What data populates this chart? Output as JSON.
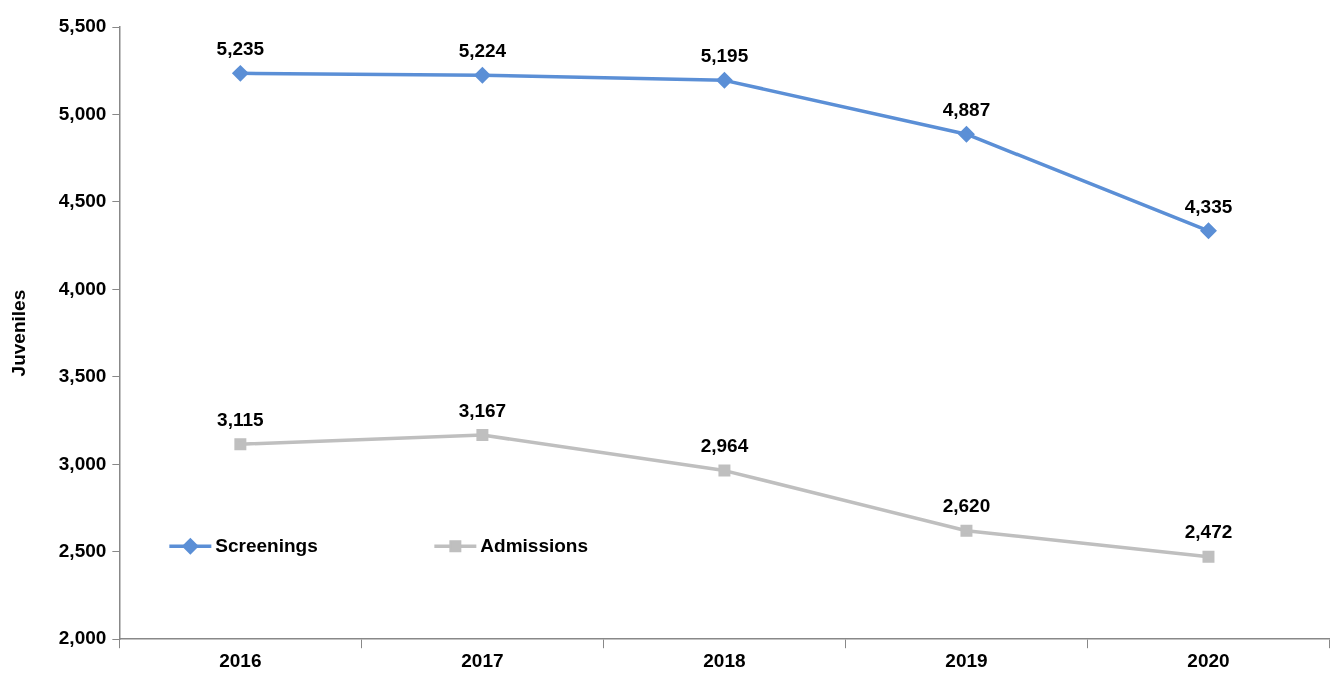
{
  "chart_data": {
    "type": "line",
    "ylabel": "Juveniles",
    "categories": [
      "2016",
      "2017",
      "2018",
      "2019",
      "2020"
    ],
    "series": [
      {
        "name": "Screenings",
        "color": "#5b8fd6",
        "marker": "diamond",
        "values": [
          5235,
          5224,
          5195,
          4887,
          4335
        ],
        "value_labels": [
          "5,235",
          "5,224",
          "5,195",
          "4,887",
          "4,335"
        ]
      },
      {
        "name": "Admissions",
        "color": "#bfbfbf",
        "marker": "square",
        "values": [
          3115,
          3167,
          2964,
          2620,
          2472
        ],
        "value_labels": [
          "3,115",
          "3,167",
          "2,964",
          "2,620",
          "2,472"
        ]
      }
    ],
    "ylim": [
      2000,
      5500
    ],
    "yticks": [
      {
        "value": 2000,
        "label": "2,000"
      },
      {
        "value": 2500,
        "label": "2,500"
      },
      {
        "value": 3000,
        "label": "3,000"
      },
      {
        "value": 3500,
        "label": "3,500"
      },
      {
        "value": 4000,
        "label": "4,000"
      },
      {
        "value": 4500,
        "label": "4,500"
      },
      {
        "value": 5000,
        "label": "5,000"
      },
      {
        "value": 5500,
        "label": "5,500"
      }
    ],
    "legend": "bottom left"
  }
}
